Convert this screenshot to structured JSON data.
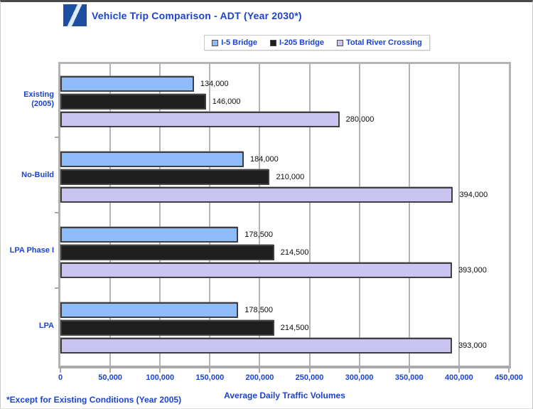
{
  "page": {
    "title": "Vehicle Trip Comparison - ADT (Year 2030*)",
    "footnote": "*Except for Existing Conditions (Year 2005)"
  },
  "colors": {
    "text_blue": "#1c43cf",
    "grid_gray": "#b4b4b4",
    "series_i5_bridge": "#8fbcf8",
    "series_i205_bridge": "#1e1e1e",
    "series_total_river_crossing": "#cac4f1"
  },
  "logo": {
    "name": "diagonal-slash-logo"
  },
  "chart_data": {
    "type": "bar",
    "orientation": "horizontal",
    "title": "Vehicle Trip Comparison - ADT (Year 2030*)",
    "xlabel": "Average Daily Traffic Volumes",
    "ylabel": "",
    "xlim": [
      0,
      450000
    ],
    "xticks": [
      0,
      50000,
      100000,
      150000,
      200000,
      250000,
      300000,
      350000,
      400000,
      450000
    ],
    "xtick_labels": [
      "0",
      "50,000",
      "100,000",
      "150,000",
      "200,000",
      "250,000",
      "300,000",
      "350,000",
      "400,000",
      "450,000"
    ],
    "grid": true,
    "legend_position": "top",
    "categories": [
      "Existing\n(2005)",
      "No-Build",
      "LPA Phase I",
      "LPA"
    ],
    "series": [
      {
        "name": "I-5 Bridge",
        "color": "#8fbcf8",
        "values": [
          134000,
          184000,
          178500,
          178500
        ],
        "labels": [
          "134,000",
          "184,000",
          "178,500",
          "178,500"
        ]
      },
      {
        "name": "I-205 Bridge",
        "color": "#1e1e1e",
        "values": [
          146000,
          210000,
          214500,
          214500
        ],
        "labels": [
          "146,000",
          "210,000",
          "214,500",
          "214,500"
        ]
      },
      {
        "name": "Total River Crossing",
        "color": "#cac4f1",
        "values": [
          280000,
          394000,
          393000,
          393000
        ],
        "labels": [
          "280,000",
          "394,000",
          "393,000",
          "393,000"
        ]
      }
    ],
    "footnote": "*Except for Existing Conditions (Year 2005)"
  }
}
